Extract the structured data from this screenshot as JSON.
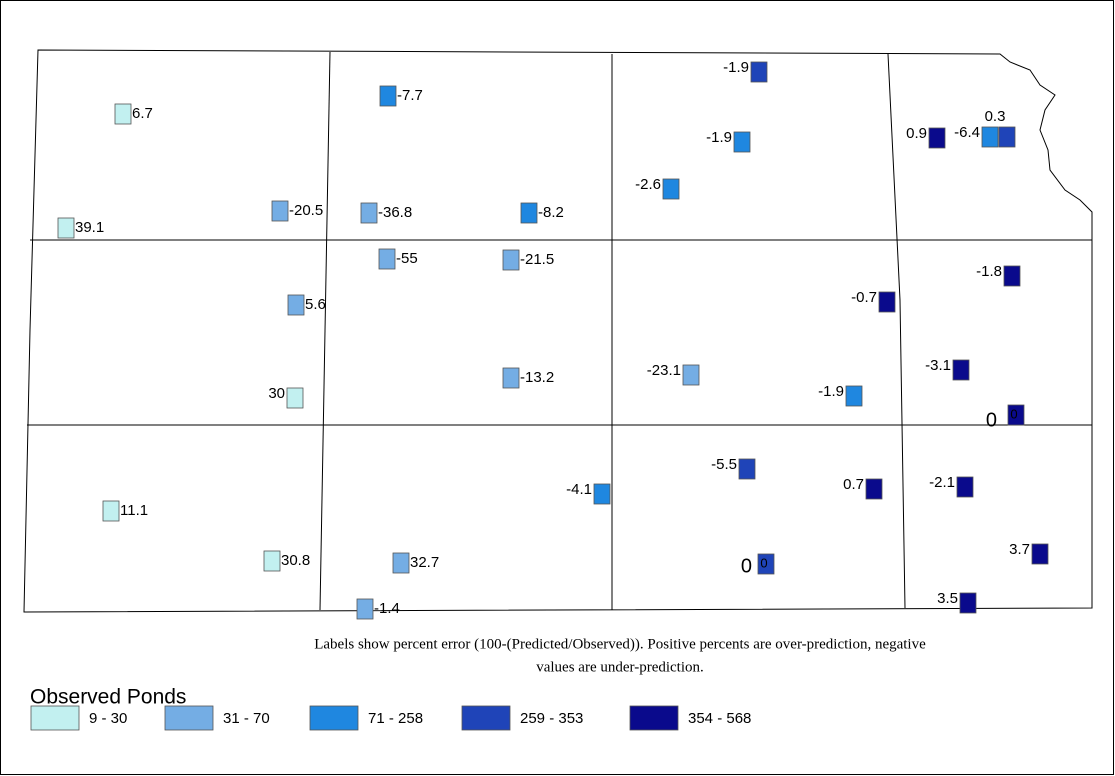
{
  "map": {
    "sites": [
      {
        "label": "6.7",
        "color": "#c2f0f0"
      },
      {
        "label": "39.1",
        "color": "#c2f0f0"
      },
      {
        "label": "-20.5",
        "color": "#74ade4"
      },
      {
        "label": "-36.8",
        "color": "#74ade4"
      },
      {
        "label": "-7.7",
        "color": "#1f87e0"
      },
      {
        "label": "-8.2",
        "color": "#1f87e0"
      },
      {
        "label": "-55",
        "color": "#74ade4"
      },
      {
        "label": "-21.5",
        "color": "#74ade4"
      },
      {
        "label": "5.6",
        "color": "#74ade4"
      },
      {
        "label": "30",
        "color": "#c2f0f0"
      },
      {
        "label": "-13.2",
        "color": "#74ade4"
      },
      {
        "label": "-23.1",
        "color": "#74ade4"
      },
      {
        "label": "11.1",
        "color": "#c2f0f0"
      },
      {
        "label": "30.8",
        "color": "#c2f0f0"
      },
      {
        "label": "32.7",
        "color": "#74ade4"
      },
      {
        "label": "-1.4",
        "color": "#74ade4"
      },
      {
        "label": "-4.1",
        "color": "#1f87e0"
      },
      {
        "label": "-1.9",
        "color": "#1f44b8"
      },
      {
        "label": "-1.9",
        "color": "#1f87e0"
      },
      {
        "label": "-2.6",
        "color": "#1f87e0"
      },
      {
        "label": "-0.7",
        "color": "#0a0a8c"
      },
      {
        "label": "-1.9",
        "color": "#1f87e0"
      },
      {
        "label": "-5.5",
        "color": "#1f44b8"
      },
      {
        "label": "0",
        "color": "#1f44b8"
      },
      {
        "label": "0.7",
        "color": "#0a0a8c"
      },
      {
        "label": "-2.1",
        "color": "#0a0a8c"
      },
      {
        "label": "3.7",
        "color": "#0a0a8c"
      },
      {
        "label": "3.5",
        "color": "#0a0a8c"
      },
      {
        "label": "-3.1",
        "color": "#0a0a8c"
      },
      {
        "label": "-1.8",
        "color": "#0a0a8c"
      },
      {
        "label": "0",
        "color": "#0a0a8c"
      },
      {
        "label": "0.9",
        "color": "#0a0a8c"
      },
      {
        "label": "-6.4",
        "color": "#1f87e0"
      },
      {
        "label": "0.3",
        "color": "#1f44b8"
      }
    ],
    "extra_labels": [
      "0",
      "0"
    ],
    "caption": [
      "Labels show percent error (100-(Predicted/Observed)). Positive percents are over-prediction, negative",
      "values are under-prediction."
    ],
    "legend": {
      "title": "Observed Ponds",
      "items": [
        {
          "label": "9 - 30",
          "color": "#c2f0f0"
        },
        {
          "label": "31 - 70",
          "color": "#74ade4"
        },
        {
          "label": "71 - 258",
          "color": "#1f87e0"
        },
        {
          "label": "259 - 353",
          "color": "#1f44b8"
        },
        {
          "label": "354 - 568",
          "color": "#0a0a8c"
        }
      ]
    }
  }
}
